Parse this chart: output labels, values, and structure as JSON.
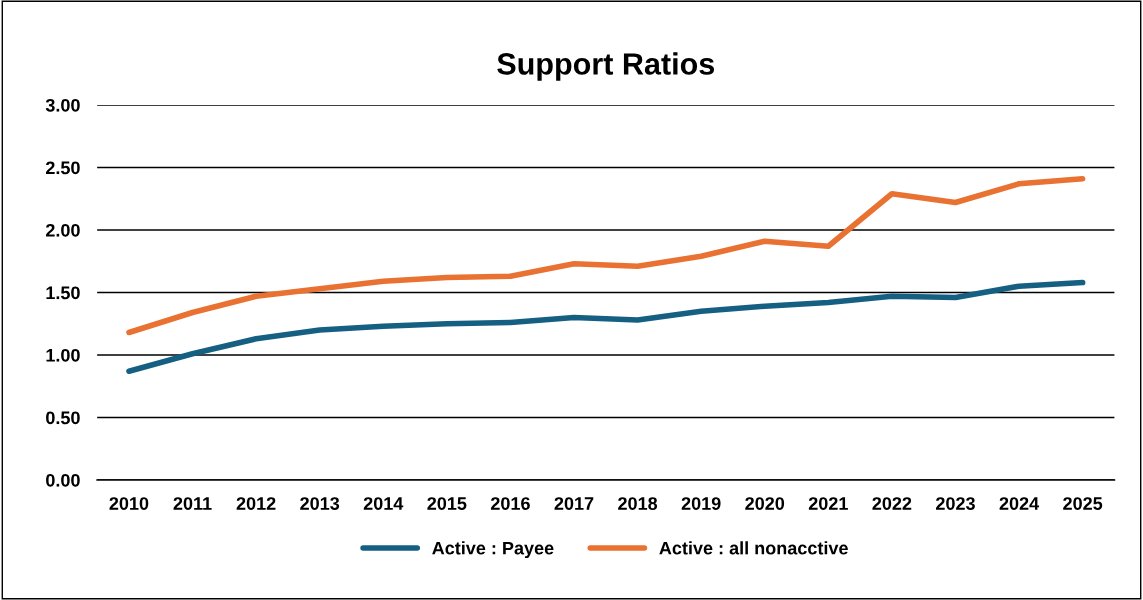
{
  "chart_data": {
    "type": "line",
    "title": "Support Ratios",
    "categories": [
      "2010",
      "2011",
      "2012",
      "2013",
      "2014",
      "2015",
      "2016",
      "2017",
      "2018",
      "2019",
      "2020",
      "2021",
      "2022",
      "2023",
      "2024",
      "2025"
    ],
    "series": [
      {
        "name": "Active : Payee",
        "color": "#156082",
        "values": [
          0.87,
          1.01,
          1.13,
          1.2,
          1.23,
          1.25,
          1.26,
          1.3,
          1.28,
          1.35,
          1.39,
          1.42,
          1.47,
          1.46,
          1.55,
          1.58
        ]
      },
      {
        "name": "Active : all nonacctive",
        "color": "#e97132",
        "values": [
          1.18,
          1.34,
          1.47,
          1.53,
          1.59,
          1.62,
          1.63,
          1.73,
          1.71,
          1.79,
          1.91,
          1.87,
          2.29,
          2.22,
          2.37,
          2.41
        ]
      }
    ],
    "ylim": [
      0,
      3
    ],
    "yticks": [
      {
        "value": 0,
        "label": "0.00"
      },
      {
        "value": 0.5,
        "label": "0.50"
      },
      {
        "value": 1,
        "label": "1.00"
      },
      {
        "value": 1.5,
        "label": "1.50"
      },
      {
        "value": 2,
        "label": "2.00"
      },
      {
        "value": 2.5,
        "label": "2.50"
      },
      {
        "value": 3,
        "label": "3.00"
      }
    ],
    "grid": "y",
    "legend": "bottom",
    "marker": "none",
    "line_style": "solid"
  }
}
